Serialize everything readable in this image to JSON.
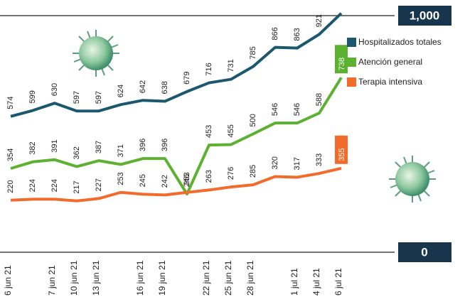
{
  "chart_data": {
    "type": "line",
    "categories": [
      "6 jun 21",
      null,
      "7 jun 21",
      "10 jun 21",
      "13 jun 21",
      null,
      "16 jun 21",
      "19 jun 21",
      null,
      "22 jun 21",
      "25 jun 21",
      "28 jun 21",
      null,
      "1 jul 21",
      "4 jul 21",
      "6 jul 21"
    ],
    "series": [
      {
        "name": "Hospitalizados totales",
        "color": "#1b5870",
        "values": [
          574,
          599,
          630,
          597,
          597,
          624,
          642,
          638,
          679,
          716,
          731,
          785,
          866,
          863,
          921,
          1010
        ]
      },
      {
        "name": "Atención general",
        "color": "#5cb130",
        "values": [
          354,
          382,
          391,
          362,
          387,
          371,
          396,
          396,
          246,
          453,
          455,
          500,
          546,
          546,
          588,
          738
        ]
      },
      {
        "name": "Terapia intensiva",
        "color": "#f26b2b",
        "values": [
          220,
          224,
          224,
          217,
          227,
          253,
          245,
          242,
          253,
          263,
          276,
          285,
          320,
          317,
          333,
          355
        ]
      }
    ],
    "ylim": [
      0,
      1000
    ],
    "yticks": [
      0,
      {
        "value": 1000,
        "label": "1,000"
      }
    ],
    "legend": "top-right"
  }
}
